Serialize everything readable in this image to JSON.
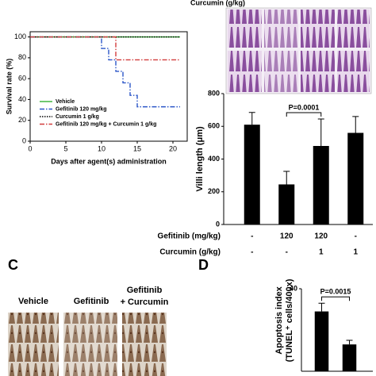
{
  "chart_data": [
    {
      "type": "line",
      "ylabel": "Survival rate (%)",
      "xlabel": "Days after agent(s) administration",
      "xlim": [
        0,
        22
      ],
      "ylim": [
        0,
        105
      ],
      "xticks": [
        0,
        5,
        10,
        15,
        20
      ],
      "yticks": [
        0,
        20,
        40,
        60,
        80,
        100
      ],
      "series": [
        {
          "name": "Vehicle",
          "color": "#33b033",
          "dash": "solid",
          "x": [
            0,
            21
          ],
          "values": [
            100,
            100
          ]
        },
        {
          "name": "Gefitinib 120 mg/kg",
          "color": "#2a55c8",
          "dash": "dashdot",
          "x": [
            0,
            10,
            10,
            11,
            11,
            12,
            12,
            13,
            13,
            14,
            14,
            15,
            15,
            21
          ],
          "values": [
            100,
            100,
            89,
            89,
            78,
            78,
            67,
            67,
            56,
            56,
            44,
            44,
            33,
            33
          ]
        },
        {
          "name": "Curcumin 1 g/kg",
          "color": "#000000",
          "dash": "dotted",
          "x": [
            0,
            21
          ],
          "values": [
            100,
            100
          ]
        },
        {
          "name": "Gefitinib 120 mg/kg + Curcumin 1 g/kg",
          "color": "#d23c3c",
          "dash": "dashdot",
          "x": [
            0,
            12,
            12,
            21
          ],
          "values": [
            100,
            100,
            78,
            78
          ]
        }
      ]
    },
    {
      "type": "bar",
      "ylabel": "Villi length (μm)",
      "ylim": [
        0,
        800
      ],
      "yticks": [
        0,
        200,
        400,
        600,
        800
      ],
      "color": "#000000",
      "categories": [
        null,
        null,
        null,
        null
      ],
      "values": [
        610,
        245,
        480,
        560
      ],
      "errors": [
        75,
        80,
        165,
        100
      ],
      "annotation": "P=0.0001",
      "x_table": [
        {
          "label": "Gefitinib (mg/kg)",
          "values": [
            "-",
            "120",
            "120",
            "-"
          ]
        },
        {
          "label": "Curcumin (g/kg)",
          "values": [
            "-",
            "-",
            "1",
            "1"
          ]
        }
      ]
    },
    {
      "type": "bar",
      "ylabel": "Apoptosis index",
      "ylabel2": "(TUNEL⁺ cells/400x)",
      "ylim": [
        0,
        40
      ],
      "yticks": [
        40
      ],
      "color": "#000000",
      "categories": [
        null,
        null
      ],
      "values": [
        29,
        13
      ],
      "errors": [
        4,
        2
      ],
      "annotation": "P=0.0015"
    }
  ],
  "histology_top": {
    "header": "Curcumin (g/kg)"
  },
  "panel_c": {
    "label": "C",
    "columns": [
      "Vehicle",
      "Gefitinib",
      "Gefitinib",
      "+ Curcumin"
    ]
  },
  "panel_d": {
    "label": "D"
  }
}
